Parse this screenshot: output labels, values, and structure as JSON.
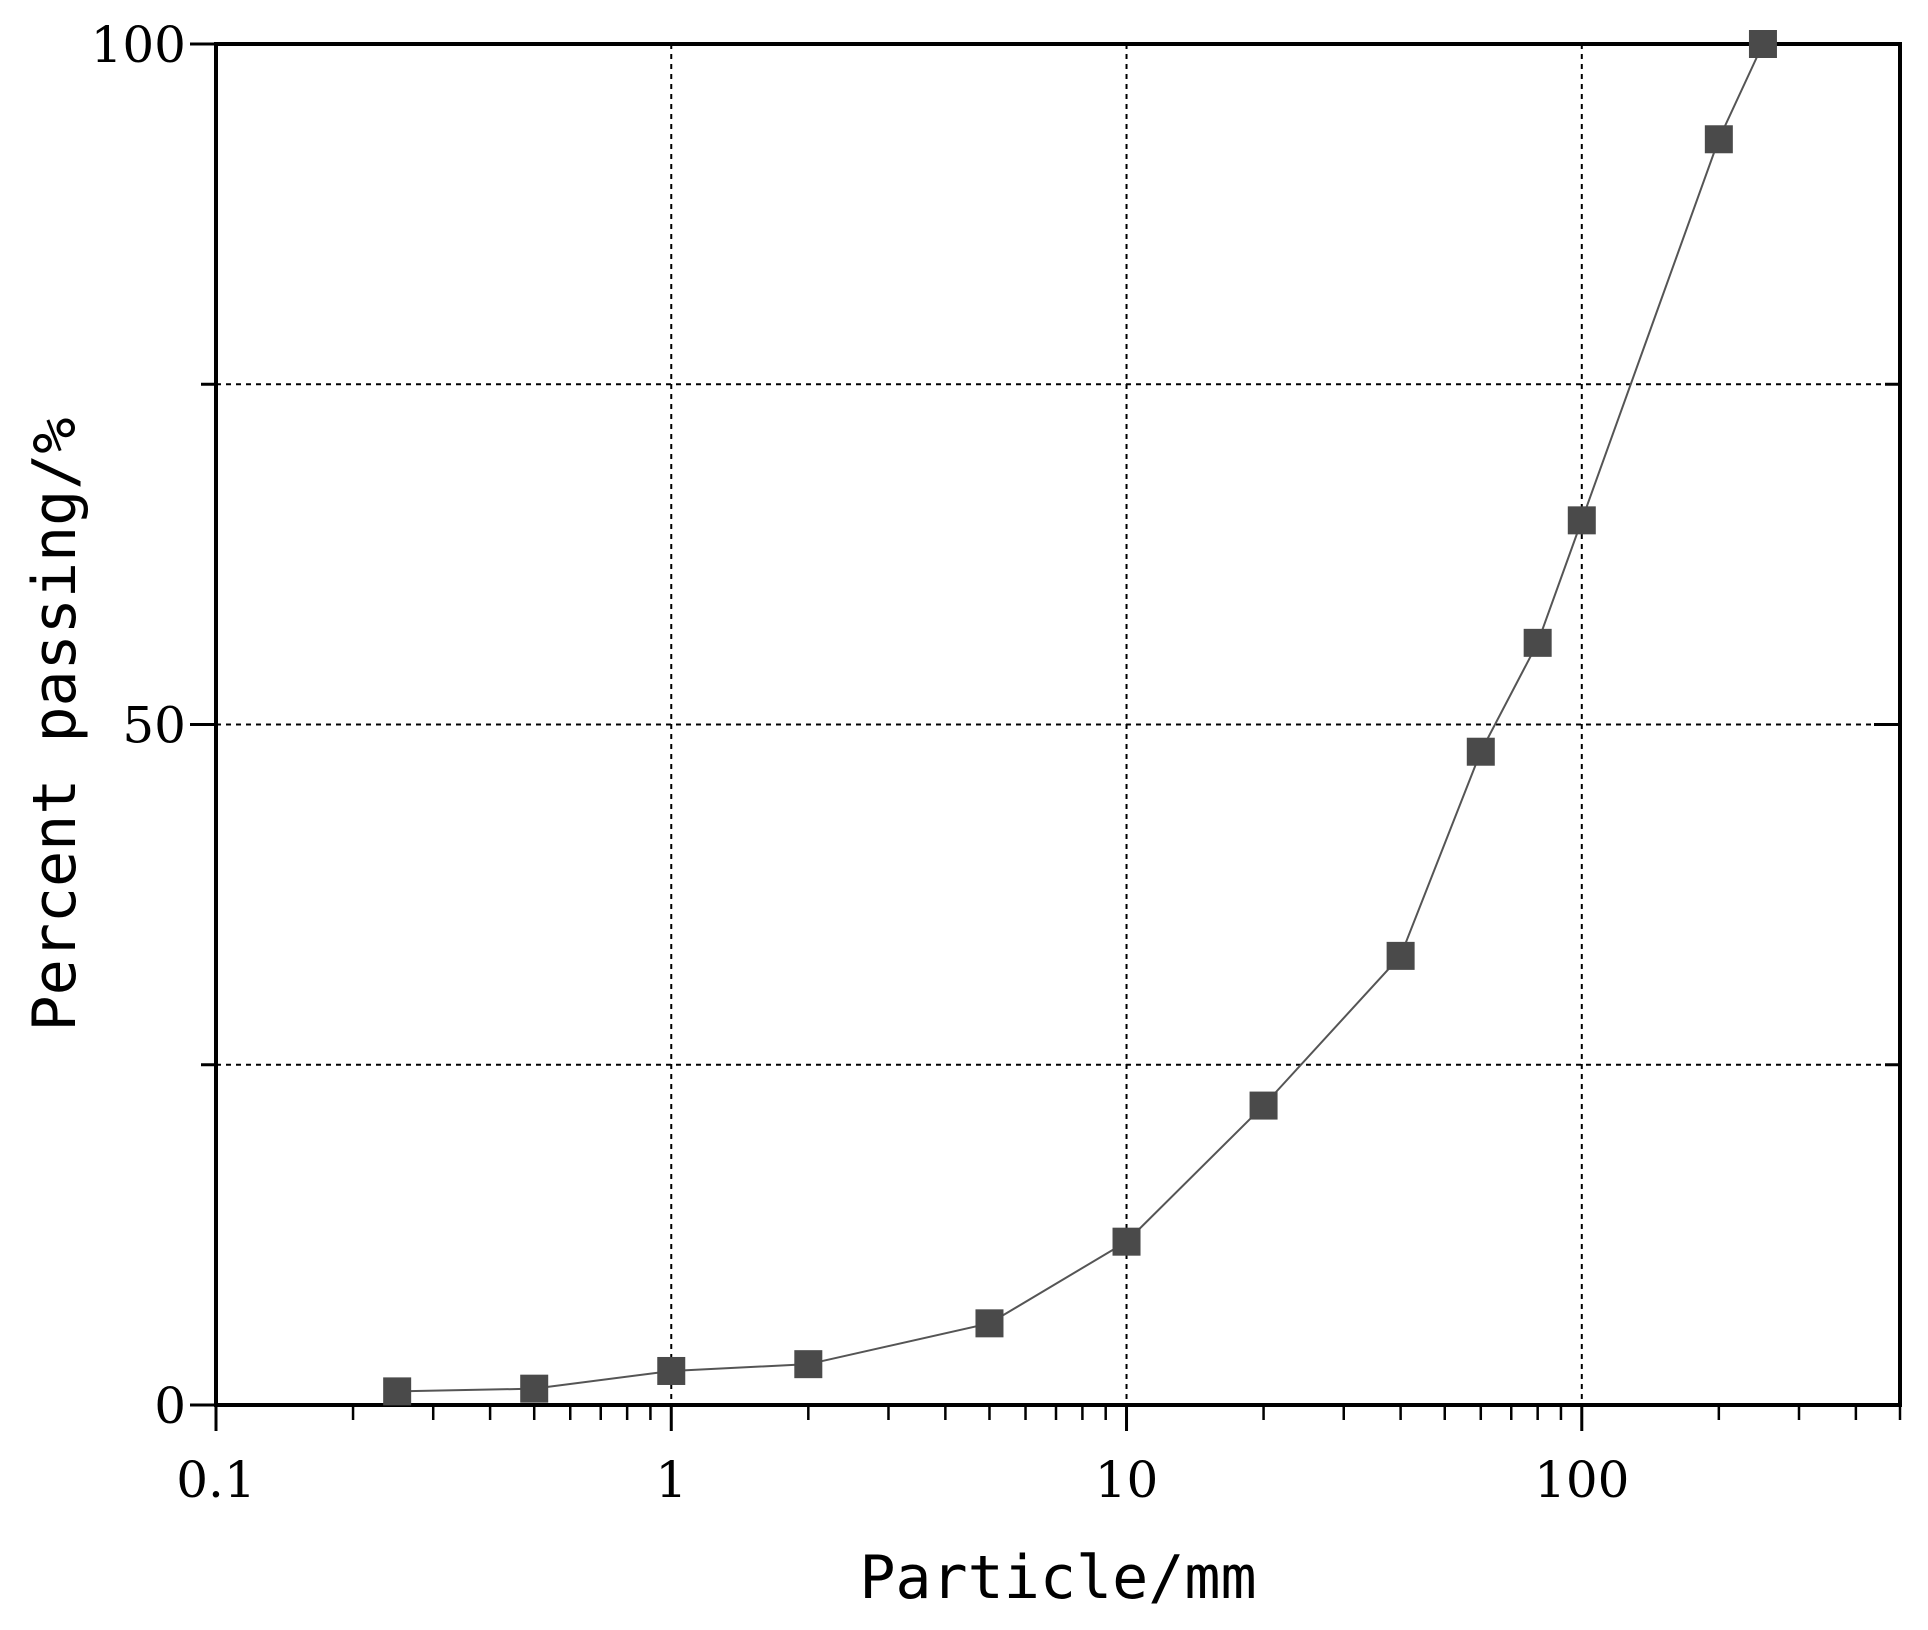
{
  "chart_data": {
    "type": "scatter",
    "title": "",
    "xlabel": "Particle/mm",
    "ylabel": "Percent passing/%",
    "xscale": "log",
    "xlim": [
      0.1,
      500
    ],
    "ylim": [
      0,
      100
    ],
    "x_ticks": [
      "0.1",
      "1",
      "10",
      "100"
    ],
    "y_ticks": [
      "0",
      "50",
      "100"
    ],
    "grid": true,
    "grid_style": "dotted",
    "marker": "square",
    "line": true,
    "marker_color": "#4a4a4a",
    "line_color": "#555555",
    "series": [
      {
        "x": [
          0.25,
          0.5,
          1,
          2,
          5,
          10,
          20,
          40,
          60,
          80,
          100,
          200,
          250
        ],
        "y": [
          1,
          1.2,
          2.5,
          3,
          6,
          12,
          22,
          33,
          48,
          56,
          65,
          93,
          100
        ]
      }
    ]
  }
}
